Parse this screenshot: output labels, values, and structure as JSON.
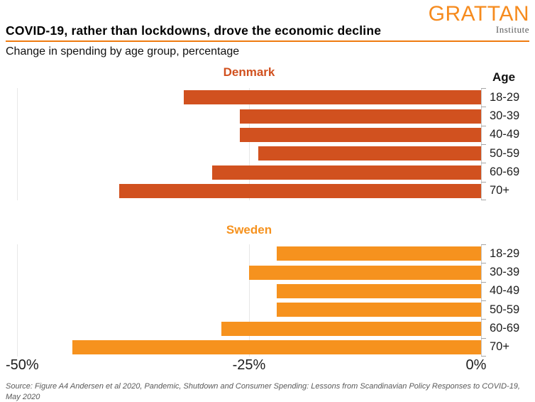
{
  "header": {
    "title": "COVID-19, rather than lockdowns, drove the economic decline",
    "subtitle": "Change in spending by age group, percentage",
    "logo_main": "GRATTAN",
    "logo_sub": "Institute"
  },
  "age_header": "Age",
  "x_axis": {
    "labels": [
      "-50%",
      "-25%",
      "0%"
    ]
  },
  "source": "Source: Figure A4 Andersen et al 2020, Pandemic, Shutdown and Consumer Spending: Lessons from Scandinavian Policy Responses to COVID-19, May 2020",
  "colors": {
    "denmark": "#D1511F",
    "sweden": "#F6921E",
    "rule_orange": "#EF7B10",
    "logo_orange": "#F68B1E",
    "gridline": "#E7E7E7",
    "source_text": "#595959"
  },
  "chart_data": [
    {
      "type": "bar",
      "orientation": "horizontal",
      "title": "Denmark",
      "categories": [
        "18-29",
        "30-39",
        "40-49",
        "50-59",
        "60-69",
        "70+"
      ],
      "values": [
        -32,
        -26,
        -26,
        -24,
        -29,
        -39
      ],
      "xlabel": "",
      "ylabel": "Age",
      "xlim": [
        -50,
        0
      ],
      "x_ticks": [
        -50,
        -25,
        0
      ],
      "grid": true,
      "color": "#D1511F",
      "legend": "none"
    },
    {
      "type": "bar",
      "orientation": "horizontal",
      "title": "Sweden",
      "categories": [
        "18-29",
        "30-39",
        "40-49",
        "50-59",
        "60-69",
        "70+"
      ],
      "values": [
        -22,
        -25,
        -22,
        -22,
        -28,
        -44
      ],
      "xlabel": "",
      "ylabel": "Age",
      "xlim": [
        -50,
        0
      ],
      "x_ticks": [
        -50,
        -25,
        0
      ],
      "grid": true,
      "color": "#F6921E",
      "legend": "none"
    }
  ]
}
